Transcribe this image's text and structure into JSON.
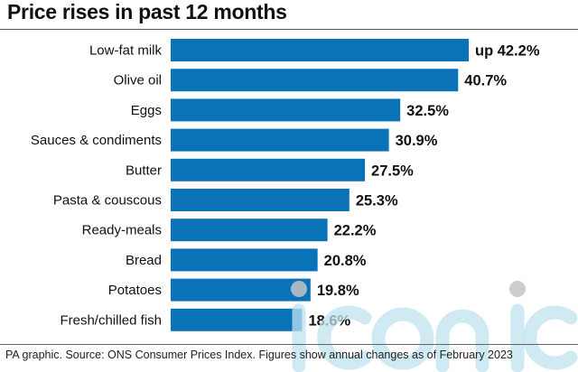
{
  "chart_data": {
    "type": "bar",
    "orientation": "horizontal",
    "title": "Price rises in past 12 months",
    "categories": [
      "Low-fat milk",
      "Olive oil",
      "Eggs",
      "Sauces & condiments",
      "Butter",
      "Pasta & couscous",
      "Ready-meals",
      "Bread",
      "Potatoes",
      "Fresh/chilled fish"
    ],
    "values": [
      42.2,
      40.7,
      32.5,
      30.9,
      27.5,
      25.3,
      22.2,
      20.8,
      19.8,
      18.6
    ],
    "value_labels": [
      "up 42.2%",
      "40.7%",
      "32.5%",
      "30.9%",
      "27.5%",
      "25.3%",
      "22.2%",
      "20.8%",
      "19.8%",
      "18.6%"
    ],
    "xlim": [
      0,
      42.2
    ],
    "grid": false,
    "legend": "none",
    "bar_color": "#0a73b7"
  },
  "source_note": "PA graphic. Source: ONS Consumer Prices Index. Figures show annual changes as of February 2023",
  "watermark_text": "iconic"
}
